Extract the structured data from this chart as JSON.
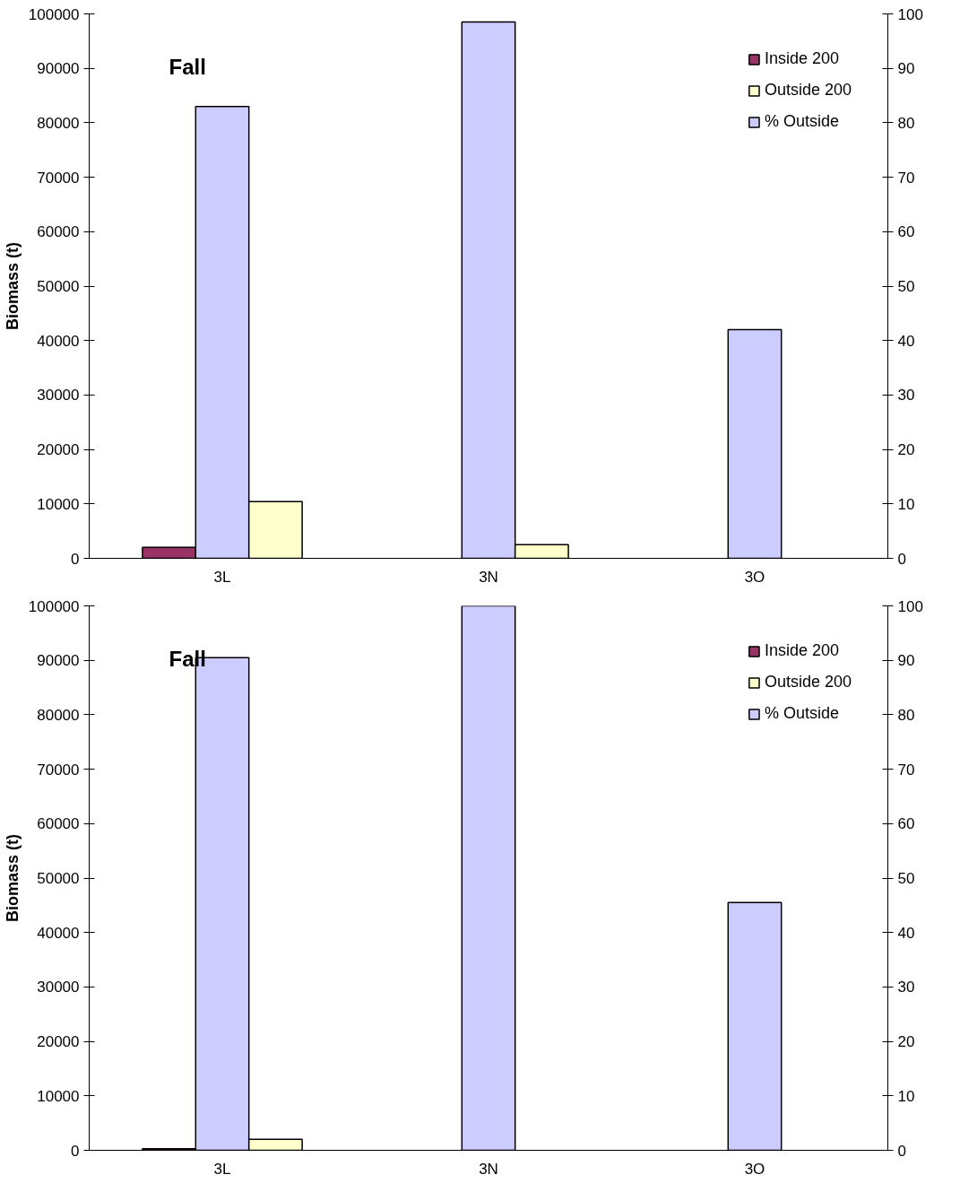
{
  "chart_data": [
    {
      "type": "bar",
      "title": "Fall",
      "ylabel": "Biomass (t)",
      "categories": [
        "3L",
        "3N",
        "3O"
      ],
      "ylim": [
        0,
        100000
      ],
      "yticks": [
        0,
        10000,
        20000,
        30000,
        40000,
        50000,
        60000,
        70000,
        80000,
        90000,
        100000
      ],
      "y2lim": [
        0,
        100
      ],
      "y2ticks": [
        0,
        10,
        20,
        30,
        40,
        50,
        60,
        70,
        80,
        90,
        100
      ],
      "legend": "top right",
      "grid": false,
      "series": [
        {
          "name": "Inside 200",
          "color": "#993366",
          "values": [
            2000,
            null,
            null
          ]
        },
        {
          "name": "% Outside",
          "color": "#ccccff",
          "values": [
            83,
            98.5,
            42
          ],
          "axis": "y2"
        },
        {
          "name": "Outside 200",
          "color": "#ffffcc",
          "values": [
            10400,
            2500,
            null
          ]
        }
      ]
    },
    {
      "type": "bar",
      "title": "Fall",
      "ylabel": "Biomass (t)",
      "categories": [
        "3L",
        "3N",
        "3O"
      ],
      "ylim": [
        0,
        100000
      ],
      "yticks": [
        0,
        10000,
        20000,
        30000,
        40000,
        50000,
        60000,
        70000,
        80000,
        90000,
        100000
      ],
      "y2lim": [
        0,
        100
      ],
      "y2ticks": [
        0,
        10,
        20,
        30,
        40,
        50,
        60,
        70,
        80,
        90,
        100
      ],
      "legend": "top right",
      "grid": false,
      "series": [
        {
          "name": "Inside 200",
          "color": "#993366",
          "values": [
            300,
            null,
            null
          ]
        },
        {
          "name": "% Outside",
          "color": "#ccccff",
          "values": [
            90.5,
            100,
            45.5
          ],
          "axis": "y2"
        },
        {
          "name": "Outside 200",
          "color": "#ffffcc",
          "values": [
            2000,
            null,
            null
          ]
        }
      ]
    }
  ]
}
